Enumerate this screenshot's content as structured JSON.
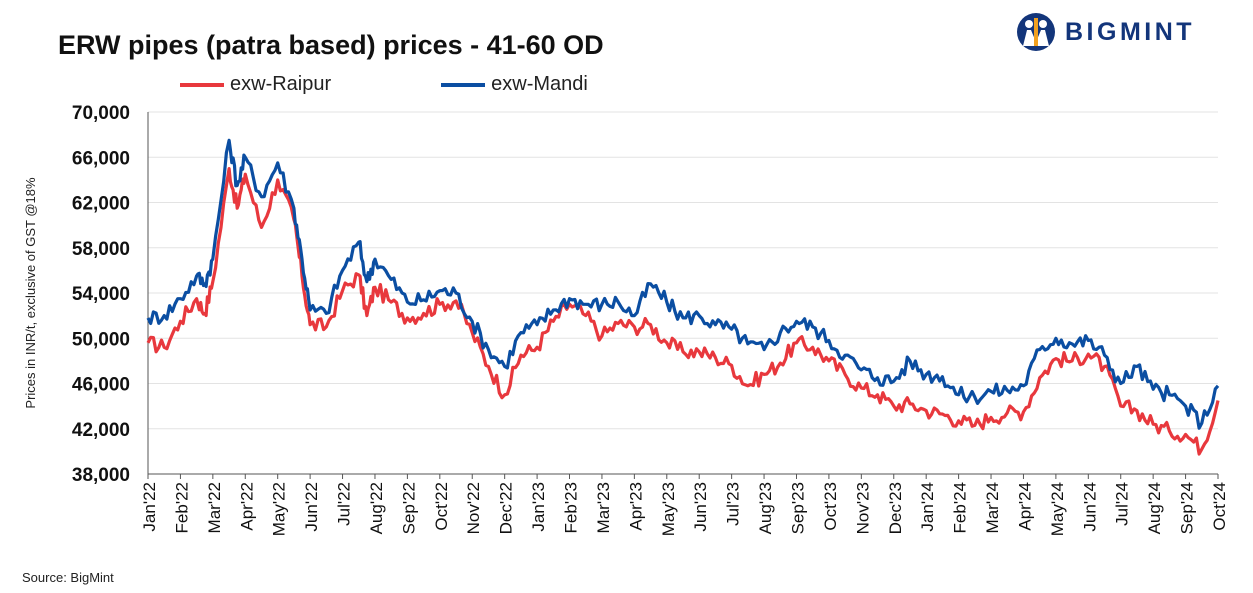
{
  "header": {
    "title": "ERW pipes (patra based) prices - 41-60 OD",
    "logo_text": "BIGMINT"
  },
  "footer": {
    "source": "Source: BigMint"
  },
  "colors": {
    "raipur": "#e8383d",
    "mandi": "#0b4ea2",
    "logo": "#13357a"
  },
  "chart_data": {
    "type": "line",
    "title": "ERW pipes (patra based) prices - 41-60 OD",
    "ylabel": "Prices in INR/t, exclusive of GST @18%",
    "xlabel": "",
    "ylim": [
      38000,
      70000
    ],
    "yticks": [
      38000,
      42000,
      46000,
      50000,
      54000,
      58000,
      62000,
      66000,
      70000
    ],
    "ytick_labels": [
      "38,000",
      "42,000",
      "46,000",
      "50,000",
      "54,000",
      "58,000",
      "62,000",
      "66,000",
      "70,000"
    ],
    "x_tick_labels": [
      "Jan'22",
      "Feb'22",
      "Mar'22",
      "Apr'22",
      "May'22",
      "Jun'22",
      "Jul'22",
      "Aug'22",
      "Sep'22",
      "Oct'22",
      "Nov'22",
      "Dec'22",
      "Jan'23",
      "Feb'23",
      "Mar'23",
      "Apr'23",
      "May'23",
      "Jun'23",
      "Jul'23",
      "Aug'23",
      "Sep'23",
      "Oct'23",
      "Nov'23",
      "Dec'23",
      "Jan'24",
      "Feb'24",
      "Mar'24",
      "Apr'24",
      "May'24",
      "Jun'24",
      "Jul'24",
      "Aug'24",
      "Sep'24",
      "Oct'24"
    ],
    "grid": true,
    "legend_position": "top",
    "series": [
      {
        "name": "exw-Raipur",
        "color": "#e8383d",
        "points": [
          [
            "Jan'22",
            49600
          ],
          [
            "Jan'22 mid",
            49200
          ],
          [
            "Feb'22",
            51500
          ],
          [
            "Feb'22 mid",
            53500
          ],
          [
            "Feb'22 late",
            52200
          ],
          [
            "Mar'22",
            55000
          ],
          [
            "Mar'22 mid",
            65000
          ],
          [
            "Mar'22 late",
            61500
          ],
          [
            "Apr'22",
            64500
          ],
          [
            "Apr'22 mid",
            59800
          ],
          [
            "May'22",
            64000
          ],
          [
            "May'22 mid",
            60500
          ],
          [
            "May'22 late",
            55500
          ],
          [
            "Jun'22",
            51200
          ],
          [
            "Jun'22 mid",
            51000
          ],
          [
            "Jul'22",
            54200
          ],
          [
            "Jul'22 mid",
            55600
          ],
          [
            "Jul'22 late",
            52000
          ],
          [
            "Aug'22",
            54500
          ],
          [
            "Aug'22 mid",
            53200
          ],
          [
            "Sep'22",
            51800
          ],
          [
            "Sep'22 mid",
            52200
          ],
          [
            "Oct'22",
            53000
          ],
          [
            "Oct'22 mid",
            53300
          ],
          [
            "Nov'22",
            50500
          ],
          [
            "Nov'22 mid",
            47500
          ],
          [
            "Dec'22",
            45000
          ],
          [
            "Dec'22 mid",
            48500
          ],
          [
            "Jan'23",
            49200
          ],
          [
            "Jan'23 mid",
            51500
          ],
          [
            "Feb'23",
            53000
          ],
          [
            "Feb'23 mid",
            52000
          ],
          [
            "Mar'23",
            50200
          ],
          [
            "Mar'23 mid",
            51300
          ],
          [
            "Apr'23",
            51000
          ],
          [
            "Apr'23 mid",
            51200
          ],
          [
            "May'23",
            49600
          ],
          [
            "May'23 mid",
            48800
          ],
          [
            "Jun'23",
            48800
          ],
          [
            "Jun'23 mid",
            48300
          ],
          [
            "Jul'23",
            47600
          ],
          [
            "Jul'23 mid",
            45800
          ],
          [
            "Aug'23",
            46800
          ],
          [
            "Aug'23 mid",
            47800
          ],
          [
            "Sep'23",
            49600
          ],
          [
            "Sep'23 mid",
            49200
          ],
          [
            "Oct'23",
            48000
          ],
          [
            "Oct'23 mid",
            46800
          ],
          [
            "Nov'23",
            45600
          ],
          [
            "Nov'23 mid",
            45000
          ],
          [
            "Dec'23",
            44000
          ],
          [
            "Dec'23 mid",
            44200
          ],
          [
            "Jan'24",
            43600
          ],
          [
            "Jan'24 mid",
            43300
          ],
          [
            "Feb'24",
            42700
          ],
          [
            "Feb'24 mid",
            42300
          ],
          [
            "Mar'24",
            43000
          ],
          [
            "Mar'24 mid",
            43400
          ],
          [
            "Apr'24",
            43500
          ],
          [
            "Apr'24 mid",
            46500
          ],
          [
            "May'24",
            48200
          ],
          [
            "May'24 mid",
            48000
          ],
          [
            "Jun'24",
            48600
          ],
          [
            "Jun'24 mid",
            47500
          ],
          [
            "Jul'24",
            44000
          ],
          [
            "Jul'24 mid",
            43600
          ],
          [
            "Aug'24",
            42400
          ],
          [
            "Aug'24 mid",
            41800
          ],
          [
            "Sep'24",
            41500
          ],
          [
            "Sep'24 mid",
            40200
          ],
          [
            "Oct'24",
            44500
          ]
        ]
      },
      {
        "name": "exw-Mandi",
        "color": "#0b4ea2",
        "points": [
          [
            "Jan'22",
            51800
          ],
          [
            "Jan'22 mid",
            52000
          ],
          [
            "Feb'22",
            53500
          ],
          [
            "Feb'22 mid",
            55500
          ],
          [
            "Feb'22 late",
            54800
          ],
          [
            "Mar'22",
            57000
          ],
          [
            "Mar'22 mid",
            67500
          ],
          [
            "Mar'22 late",
            63500
          ],
          [
            "Apr'22",
            66000
          ],
          [
            "Apr'22 mid",
            62500
          ],
          [
            "May'22",
            65500
          ],
          [
            "May'22 mid",
            61500
          ],
          [
            "May'22 late",
            57000
          ],
          [
            "Jun'22",
            52500
          ],
          [
            "Jun'22 mid",
            52200
          ],
          [
            "Jul'22",
            56000
          ],
          [
            "Jul'22 mid",
            58500
          ],
          [
            "Jul'22 late",
            55000
          ],
          [
            "Aug'22",
            57000
          ],
          [
            "Aug'22 mid",
            55200
          ],
          [
            "Sep'22",
            53200
          ],
          [
            "Sep'22 mid",
            53400
          ],
          [
            "Oct'22",
            54200
          ],
          [
            "Oct'22 mid",
            54000
          ],
          [
            "Nov'22",
            51500
          ],
          [
            "Nov'22 mid",
            49000
          ],
          [
            "Dec'22",
            47500
          ],
          [
            "Dec'22 mid",
            50500
          ],
          [
            "Jan'23",
            51200
          ],
          [
            "Jan'23 mid",
            52500
          ],
          [
            "Feb'23",
            53500
          ],
          [
            "Feb'23 mid",
            53000
          ],
          [
            "Mar'23",
            53000
          ],
          [
            "Mar'23 mid",
            53200
          ],
          [
            "Apr'23",
            52000
          ],
          [
            "Apr'23 mid",
            54800
          ],
          [
            "May'23",
            53200
          ],
          [
            "May'23 mid",
            51800
          ],
          [
            "Jun'23",
            52000
          ],
          [
            "Jun'23 mid",
            51200
          ],
          [
            "Jul'23",
            50800
          ],
          [
            "Jul'23 mid",
            49500
          ],
          [
            "Aug'23",
            49000
          ],
          [
            "Aug'23 mid",
            50500
          ],
          [
            "Sep'23",
            51500
          ],
          [
            "Sep'23 mid",
            51000
          ],
          [
            "Oct'23",
            49800
          ],
          [
            "Oct'23 mid",
            48500
          ],
          [
            "Nov'23",
            47200
          ],
          [
            "Nov'23 mid",
            46500
          ],
          [
            "Dec'23",
            46200
          ],
          [
            "Dec'23 mid",
            48000
          ],
          [
            "Jan'24",
            46800
          ],
          [
            "Jan'24 mid",
            46600
          ],
          [
            "Feb'24",
            45000
          ],
          [
            "Feb'24 mid",
            44800
          ],
          [
            "Mar'24",
            45300
          ],
          [
            "Mar'24 mid",
            45400
          ],
          [
            "Apr'24",
            45800
          ],
          [
            "Apr'24 mid",
            49000
          ],
          [
            "May'24",
            50000
          ],
          [
            "May'24 mid",
            49500
          ],
          [
            "Jun'24",
            49800
          ],
          [
            "Jun'24 mid",
            48500
          ],
          [
            "Jul'24",
            46000
          ],
          [
            "Jul'24 mid",
            47500
          ],
          [
            "Aug'24",
            45500
          ],
          [
            "Aug'24 mid",
            45000
          ],
          [
            "Sep'24",
            44000
          ],
          [
            "Sep'24 mid",
            42500
          ],
          [
            "Oct'24",
            45800
          ]
        ]
      }
    ]
  }
}
